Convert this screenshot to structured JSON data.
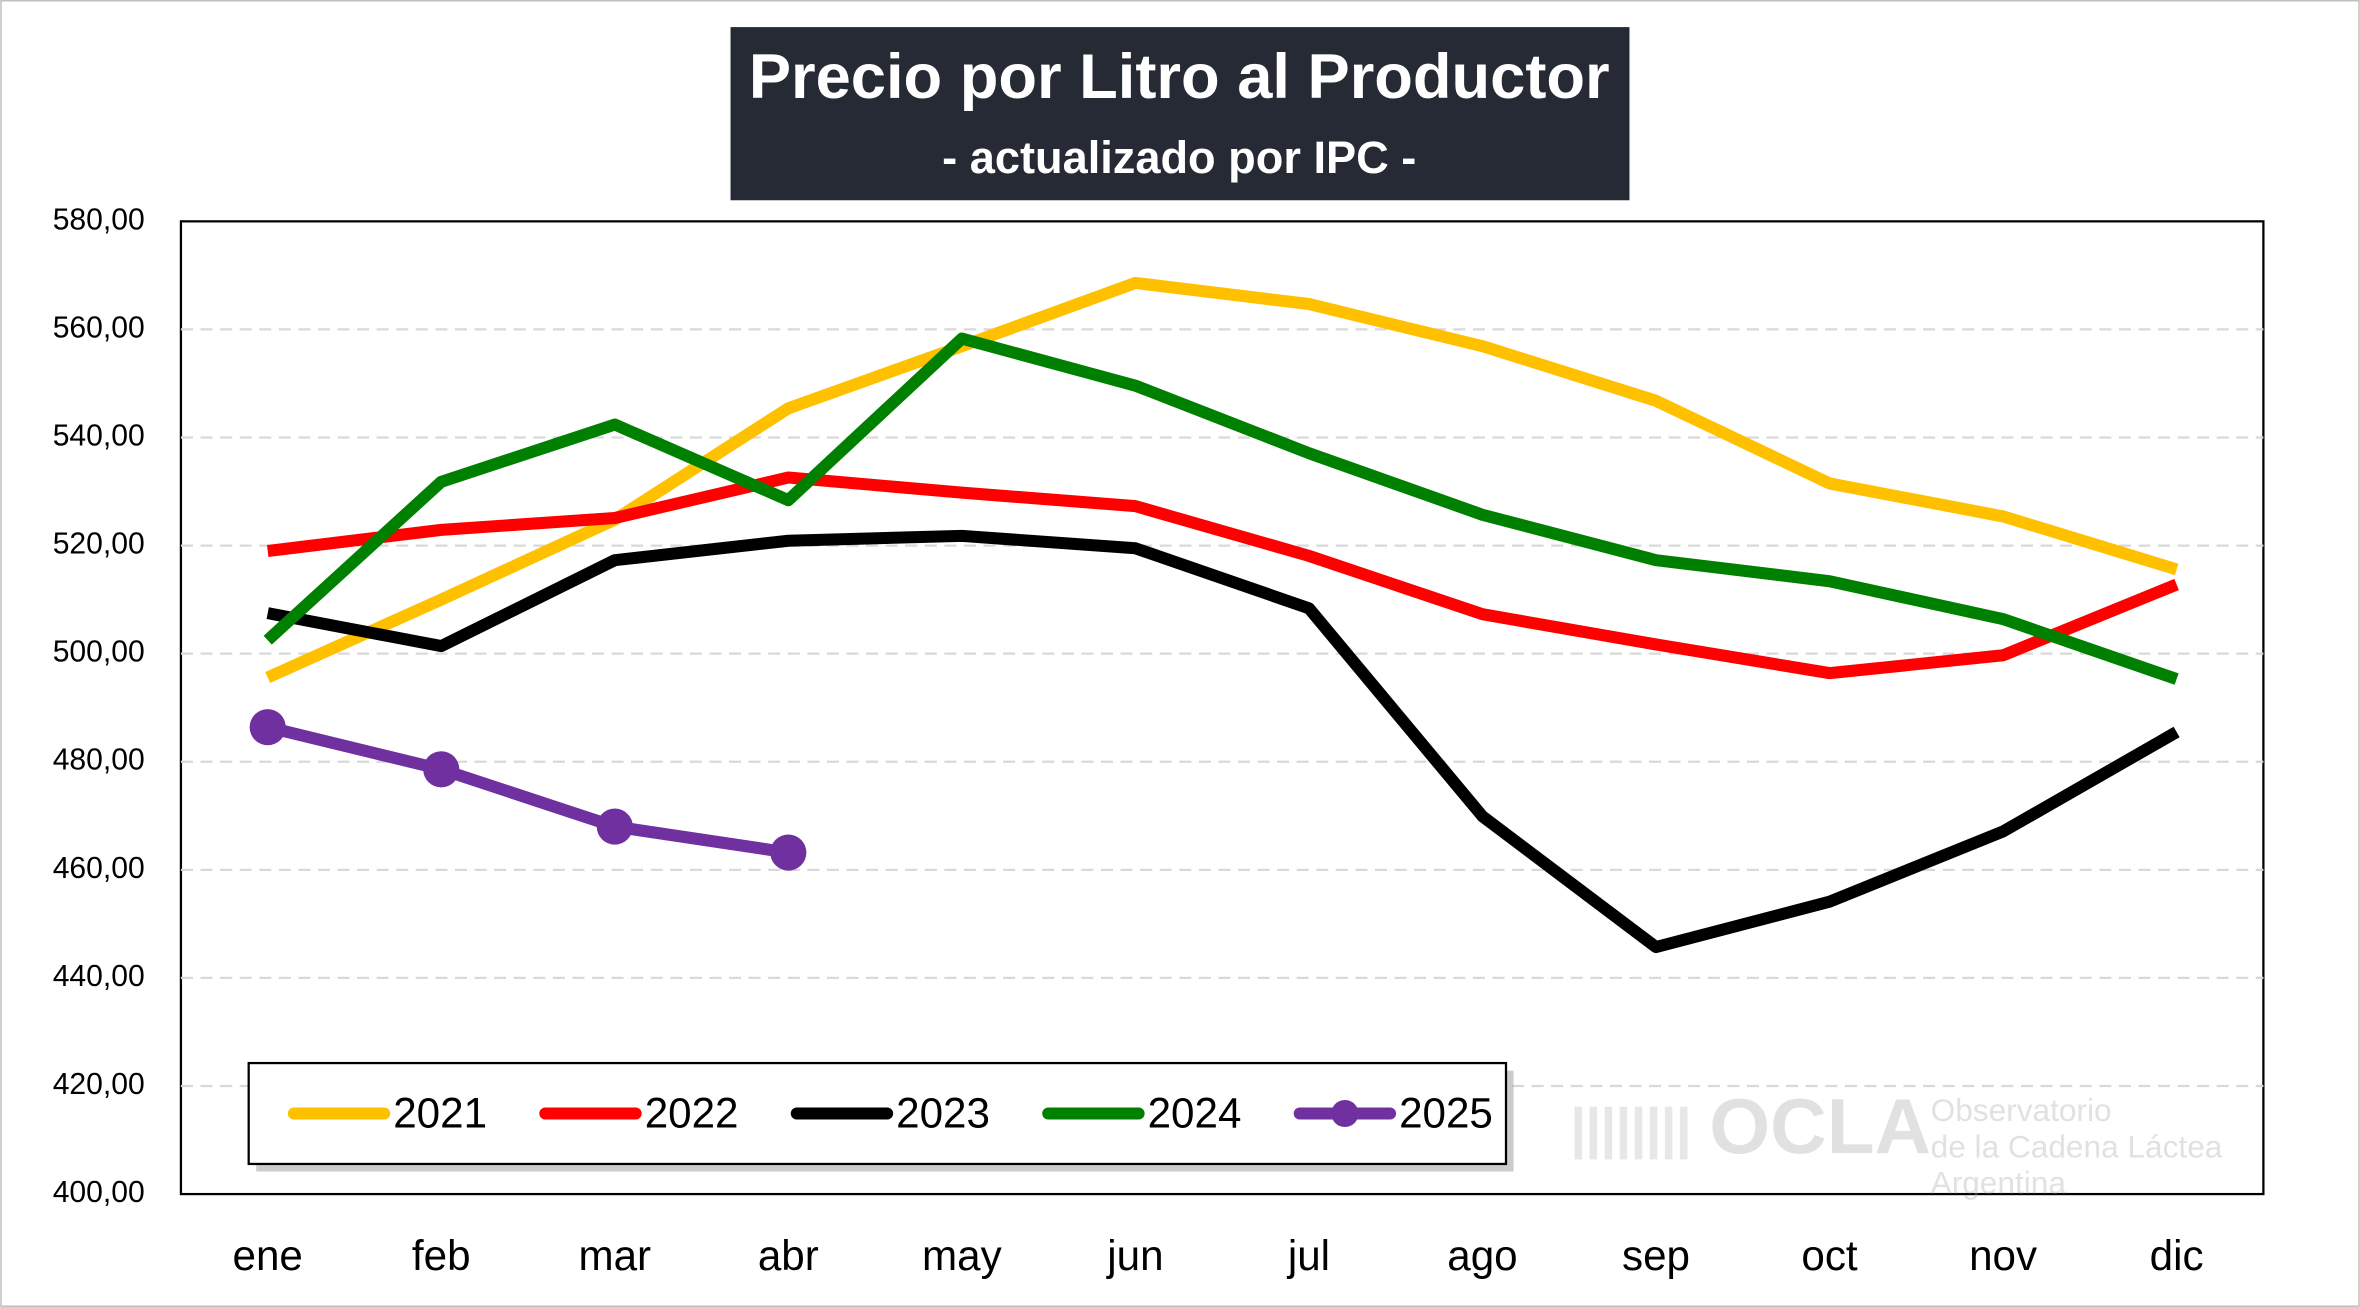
{
  "chart_data": {
    "type": "line",
    "title": "Precio por Litro al Productor",
    "subtitle": "- actualizado por IPC -",
    "categories": [
      "ene",
      "feb",
      "mar",
      "abr",
      "may",
      "jun",
      "jul",
      "ago",
      "sep",
      "oct",
      "nov",
      "dic"
    ],
    "series": [
      {
        "name": "2021",
        "color": "#ffc000",
        "values": [
          495.6,
          510,
          524.8,
          545.4,
          556.9,
          568.6,
          564.7,
          556.9,
          546.8,
          531.5,
          525.4,
          515.6
        ]
      },
      {
        "name": "2022",
        "color": "#ff0000",
        "values": [
          519,
          522.9,
          525.1,
          532.6,
          529.8,
          527.3,
          518.1,
          507.3,
          501.7,
          496.4,
          499.7,
          512.8
        ]
      },
      {
        "name": "2023",
        "color": "#000000",
        "values": [
          507.5,
          501.4,
          517.3,
          520.9,
          521.8,
          519.5,
          508.4,
          469.9,
          445.7,
          454.1,
          467.1,
          485.5
        ]
      },
      {
        "name": "2024",
        "color": "#008000",
        "values": [
          502.5,
          531.8,
          542.4,
          528.4,
          558.3,
          549.6,
          537.1,
          525.7,
          517.3,
          513.4,
          506.4,
          495.3
        ]
      },
      {
        "name": "2025",
        "color": "#7030a0",
        "markers": true,
        "values": [
          486.4,
          478.6,
          468,
          463.2,
          null,
          null,
          null,
          null,
          null,
          null,
          null,
          null
        ]
      }
    ],
    "ylim": [
      400,
      580
    ],
    "yticks": [
      {
        "value": 400,
        "label": "400,00"
      },
      {
        "value": 420,
        "label": "420,00"
      },
      {
        "value": 440,
        "label": "440,00"
      },
      {
        "value": 460,
        "label": "460,00"
      },
      {
        "value": 480,
        "label": "480,00"
      },
      {
        "value": 500,
        "label": "500,00"
      },
      {
        "value": 520,
        "label": "520,00"
      },
      {
        "value": 540,
        "label": "540,00"
      },
      {
        "value": 560,
        "label": "560,00"
      },
      {
        "value": 580,
        "label": "580,00"
      }
    ],
    "grid": true,
    "legend": "bottom-left",
    "annotations": [
      "OCLA",
      "Observatorio",
      "de la Cadena Láctea",
      "Argentina"
    ]
  }
}
